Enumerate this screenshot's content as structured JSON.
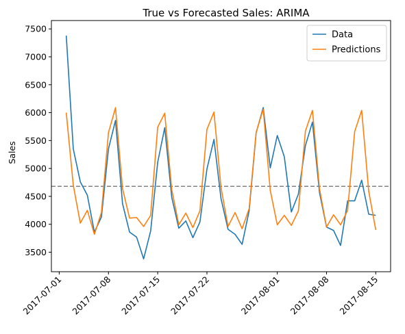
{
  "chart_data": {
    "type": "line",
    "title": "True vs Forecasted Sales: ARIMA",
    "xlabel": "",
    "ylabel": "Sales",
    "x_start": "2017-07-02",
    "x": [
      "2017-07-02",
      "2017-07-03",
      "2017-07-04",
      "2017-07-05",
      "2017-07-06",
      "2017-07-07",
      "2017-07-08",
      "2017-07-09",
      "2017-07-10",
      "2017-07-11",
      "2017-07-12",
      "2017-07-13",
      "2017-07-14",
      "2017-07-15",
      "2017-07-16",
      "2017-07-17",
      "2017-07-18",
      "2017-07-19",
      "2017-07-20",
      "2017-07-21",
      "2017-07-22",
      "2017-07-23",
      "2017-07-24",
      "2017-07-25",
      "2017-07-26",
      "2017-07-27",
      "2017-07-28",
      "2017-07-29",
      "2017-07-30",
      "2017-07-31",
      "2017-08-01",
      "2017-08-02",
      "2017-08-03",
      "2017-08-04",
      "2017-08-05",
      "2017-08-06",
      "2017-08-07",
      "2017-08-08",
      "2017-08-09",
      "2017-08-10",
      "2017-08-11",
      "2017-08-12",
      "2017-08-13",
      "2017-08-14",
      "2017-08-15"
    ],
    "series": [
      {
        "name": "Data",
        "color": "#1f77b4",
        "values": [
          7380,
          5350,
          4760,
          4520,
          3860,
          4130,
          5350,
          5860,
          4370,
          3860,
          3770,
          3380,
          3880,
          5110,
          5730,
          4480,
          3930,
          4060,
          3760,
          4040,
          4990,
          5520,
          4460,
          3910,
          3820,
          3640,
          4240,
          5640,
          6090,
          5010,
          5590,
          5210,
          4220,
          4540,
          5410,
          5830,
          4570,
          3950,
          3890,
          3620,
          4420,
          4420,
          4790,
          4180,
          4160
        ]
      },
      {
        "name": "Predictions",
        "color": "#ff7f0e",
        "values": [
          6000,
          4700,
          4020,
          4250,
          3820,
          4210,
          5640,
          6090,
          4640,
          4110,
          4120,
          3960,
          4160,
          5740,
          5990,
          4620,
          3990,
          4200,
          3940,
          4240,
          5700,
          6010,
          4660,
          3960,
          4210,
          3920,
          4280,
          5650,
          6060,
          4610,
          3990,
          4160,
          3980,
          4240,
          5670,
          6040,
          4640,
          3950,
          4170,
          3990,
          4250,
          5660,
          6040,
          4590,
          3900
        ]
      }
    ],
    "reference_line": {
      "value": 4680,
      "style": "dashed",
      "color": "#808080"
    },
    "ylim": [
      3150,
      7650
    ],
    "yticks": [
      3500,
      4000,
      4500,
      5000,
      5500,
      6000,
      6500,
      7000,
      7500
    ],
    "xticks": [
      "2017-07-01",
      "2017-07-08",
      "2017-07-15",
      "2017-07-22",
      "2017-08-01",
      "2017-08-08",
      "2017-08-15"
    ],
    "legend": {
      "placement": "top-right",
      "entries": [
        "Data",
        "Predictions"
      ]
    },
    "grid": false
  }
}
